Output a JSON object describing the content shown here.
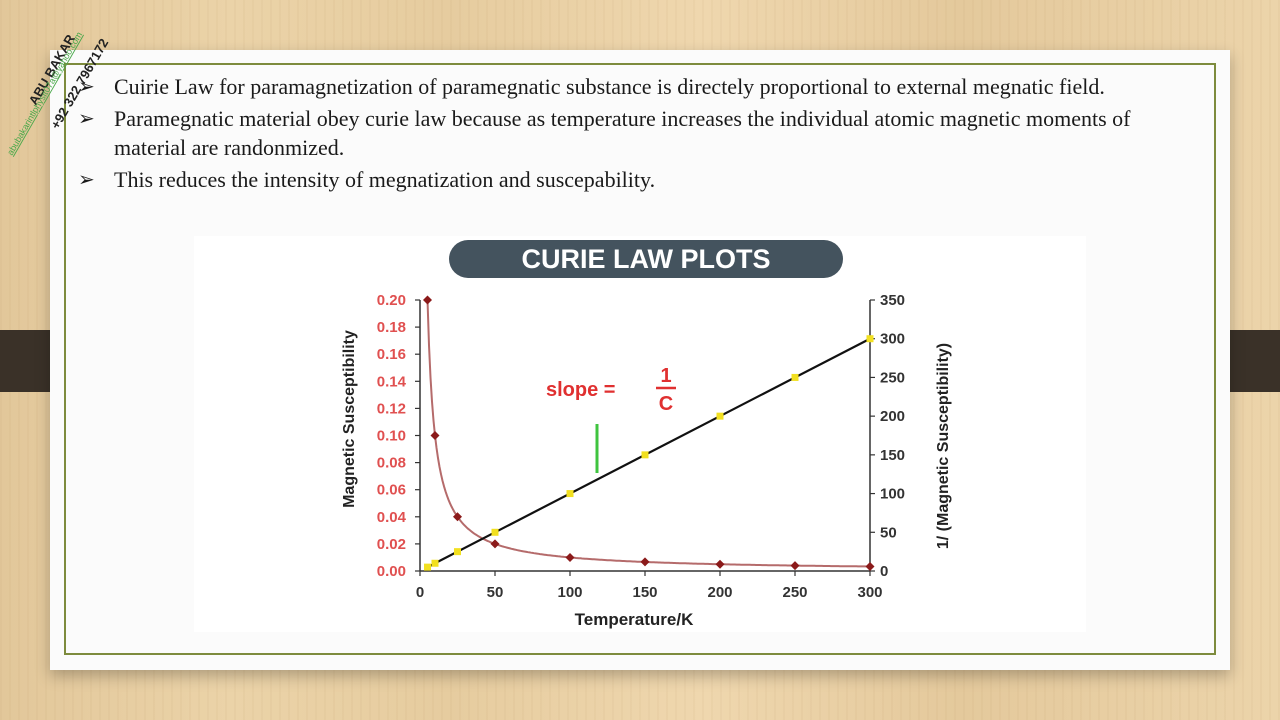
{
  "slide": {
    "bullets": [
      {
        "text": "Cuirie Law for paramagnetization of paramegnatic substance is directely proportional to external megnatic field."
      },
      {
        "text": "Paramegnatic material obey curie law because as temperature increases the individual atomic magnetic moments of material are randonmized."
      },
      {
        "text": "This reduces the intensity of megnatization and suscepability."
      }
    ],
    "bullet_icon": "arrow-bullet-icon"
  },
  "watermark": {
    "name": "ABU BAKAR",
    "phone": "+92 322 7967172",
    "email": "abubakarintlphysit07a@yahoo.com"
  },
  "colors": {
    "frame": "#7d8b3d",
    "banner": "#44535e",
    "left_axis": "#e05050",
    "curve": "#b56b6b",
    "curve_marker": "#8b1a1a",
    "line": "#111111",
    "line_marker": "#f2e020",
    "slope_bar": "#3fc43f",
    "slope_text": "#e03030"
  },
  "chart_data": {
    "type": "scatter",
    "title": "CURIE LAW PLOTS",
    "xlabel": "Temperature/K",
    "ylabel_left": "Magnetic Susceptibility",
    "ylabel_right": "1/ (Magnetic Susceptibility)",
    "xlim": [
      0,
      300
    ],
    "ylim_left": [
      0,
      0.2
    ],
    "ylim_right": [
      0,
      350
    ],
    "x_ticks": [
      "0",
      "50",
      "100",
      "150",
      "200",
      "250",
      "300"
    ],
    "y_left_ticks": [
      "0.00",
      "0.02",
      "0.04",
      "0.06",
      "0.08",
      "0.10",
      "0.12",
      "0.14",
      "0.16",
      "0.18",
      "0.20"
    ],
    "y_right_ticks": [
      "0",
      "50",
      "100",
      "150",
      "200",
      "250",
      "300",
      "350"
    ],
    "series": [
      {
        "axis": "left",
        "x": [
          5,
          10,
          25,
          50,
          100,
          150,
          200,
          250,
          300
        ],
        "y": [
          0.2,
          0.1,
          0.04,
          0.02,
          0.01,
          0.0067,
          0.005,
          0.004,
          0.0033
        ]
      },
      {
        "axis": "right",
        "x": [
          5,
          10,
          25,
          50,
          100,
          150,
          200,
          250,
          300
        ],
        "y": [
          5,
          10,
          25,
          50,
          100,
          150,
          200,
          250,
          300
        ]
      }
    ],
    "annotation": {
      "text": "slope =",
      "numerator": "1",
      "denominator": "C"
    }
  }
}
